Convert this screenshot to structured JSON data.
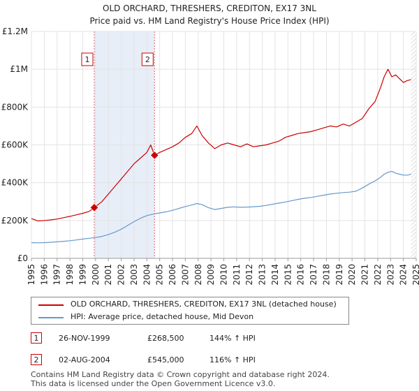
{
  "chart_data": {
    "type": "line",
    "title": "OLD ORCHARD, THRESHERS, CREDITON, EX17 3NL",
    "subtitle": "Price paid vs. HM Land Registry's House Price Index (HPI)",
    "xlim": [
      1995,
      2025
    ],
    "ylim": [
      0,
      1200000
    ],
    "x_ticks": [
      "1995",
      "1996",
      "1997",
      "1998",
      "1999",
      "2000",
      "2001",
      "2002",
      "2003",
      "2004",
      "2005",
      "2006",
      "2007",
      "2008",
      "2009",
      "2010",
      "2011",
      "2012",
      "2013",
      "2014",
      "2015",
      "2016",
      "2017",
      "2018",
      "2019",
      "2020",
      "2021",
      "2022",
      "2023",
      "2024",
      "2025"
    ],
    "y_ticks": [
      {
        "value": 0,
        "label": "£0"
      },
      {
        "value": 200000,
        "label": "£200K"
      },
      {
        "value": 400000,
        "label": "£400K"
      },
      {
        "value": 600000,
        "label": "£600K"
      },
      {
        "value": 800000,
        "label": "£800K"
      },
      {
        "value": 1000000,
        "label": "£1M"
      },
      {
        "value": 1200000,
        "label": "£1.2M"
      }
    ],
    "grid": true,
    "shaded_span": [
      1999.9,
      2004.6
    ],
    "future_hatch_from": 2024.6,
    "series": [
      {
        "name": "OLD ORCHARD, THRESHERS, CREDITON, EX17 3NL (detached house)",
        "color": "#cc0000",
        "x": [
          1995.0,
          1995.5,
          1996.0,
          1996.5,
          1997.0,
          1997.5,
          1998.0,
          1998.5,
          1999.0,
          1999.5,
          1999.9,
          2000.5,
          2001.0,
          2001.5,
          2002.0,
          2002.5,
          2003.0,
          2003.5,
          2004.0,
          2004.3,
          2004.6,
          2005.0,
          2005.5,
          2006.0,
          2006.5,
          2007.0,
          2007.5,
          2007.9,
          2008.3,
          2008.8,
          2009.3,
          2009.8,
          2010.3,
          2010.8,
          2011.3,
          2011.8,
          2012.3,
          2012.8,
          2013.3,
          2013.8,
          2014.3,
          2014.8,
          2015.3,
          2015.8,
          2016.3,
          2016.8,
          2017.3,
          2017.8,
          2018.3,
          2018.8,
          2019.3,
          2019.8,
          2020.3,
          2020.8,
          2021.3,
          2021.8,
          2022.2,
          2022.5,
          2022.8,
          2023.1,
          2023.4,
          2023.7,
          2024.0,
          2024.3,
          2024.6
        ],
        "values": [
          210000,
          198000,
          200000,
          203000,
          208000,
          215000,
          222000,
          230000,
          238000,
          248000,
          268500,
          300000,
          340000,
          380000,
          420000,
          460000,
          500000,
          530000,
          560000,
          600000,
          545000,
          560000,
          575000,
          590000,
          610000,
          640000,
          660000,
          700000,
          650000,
          610000,
          580000,
          600000,
          610000,
          600000,
          590000,
          605000,
          590000,
          595000,
          600000,
          610000,
          620000,
          640000,
          650000,
          660000,
          665000,
          670000,
          680000,
          690000,
          700000,
          695000,
          710000,
          700000,
          720000,
          740000,
          790000,
          830000,
          900000,
          960000,
          1000000,
          960000,
          970000,
          950000,
          930000,
          940000,
          945000
        ]
      },
      {
        "name": "HPI: Average price, detached house, Mid Devon",
        "color": "#6699cc",
        "x": [
          1995.0,
          1995.5,
          1996.0,
          1996.5,
          1997.0,
          1997.5,
          1998.0,
          1998.5,
          1999.0,
          1999.5,
          2000.0,
          2000.5,
          2001.0,
          2001.5,
          2002.0,
          2002.5,
          2003.0,
          2003.5,
          2004.0,
          2004.5,
          2005.0,
          2005.5,
          2006.0,
          2006.5,
          2007.0,
          2007.5,
          2007.9,
          2008.3,
          2008.8,
          2009.3,
          2009.8,
          2010.3,
          2010.8,
          2011.3,
          2011.8,
          2012.3,
          2012.8,
          2013.3,
          2013.8,
          2014.3,
          2014.8,
          2015.3,
          2015.8,
          2016.3,
          2016.8,
          2017.3,
          2017.8,
          2018.3,
          2018.8,
          2019.3,
          2019.8,
          2020.3,
          2020.8,
          2021.3,
          2021.8,
          2022.2,
          2022.5,
          2022.8,
          2023.1,
          2023.4,
          2023.7,
          2024.0,
          2024.3,
          2024.6
        ],
        "values": [
          83000,
          82000,
          83000,
          85000,
          87000,
          90000,
          93000,
          97000,
          102000,
          106000,
          110000,
          116000,
          126000,
          138000,
          154000,
          174000,
          194000,
          212000,
          226000,
          234000,
          240000,
          246000,
          254000,
          264000,
          274000,
          282000,
          290000,
          284000,
          268000,
          258000,
          264000,
          270000,
          272000,
          270000,
          271000,
          273000,
          275000,
          280000,
          286000,
          292000,
          298000,
          305000,
          312000,
          318000,
          322000,
          328000,
          334000,
          340000,
          344000,
          348000,
          350000,
          355000,
          372000,
          392000,
          410000,
          428000,
          445000,
          455000,
          460000,
          450000,
          445000,
          440000,
          440000,
          445000
        ]
      }
    ],
    "markers": [
      {
        "id": "1",
        "x": 1999.9,
        "y": 268500,
        "label": "1"
      },
      {
        "id": "2",
        "x": 2004.6,
        "y": 545000,
        "label": "2"
      }
    ]
  },
  "legend": {
    "items": [
      {
        "label": "OLD ORCHARD, THRESHERS, CREDITON, EX17 3NL (detached house)",
        "color": "#cc0000"
      },
      {
        "label": "HPI: Average price, detached house, Mid Devon",
        "color": "#6699cc"
      }
    ]
  },
  "transactions": [
    {
      "num": "1",
      "date": "26-NOV-1999",
      "price": "£268,500",
      "hpi": "144% ↑ HPI"
    },
    {
      "num": "2",
      "date": "02-AUG-2004",
      "price": "£545,000",
      "hpi": "116% ↑ HPI"
    }
  ],
  "footer": {
    "line1": "Contains HM Land Registry data © Crown copyright and database right 2024.",
    "line2": "This data is licensed under the Open Government Licence v3.0."
  }
}
